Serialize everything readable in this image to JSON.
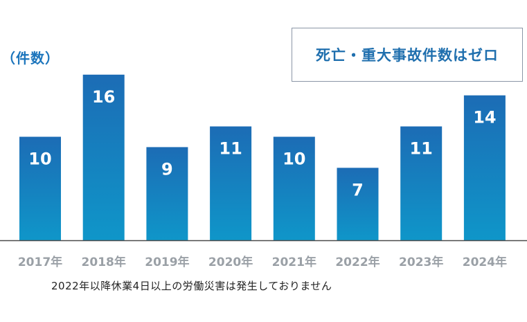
{
  "unit_label": "（件数）",
  "callout": "死亡・重大事故件数はゼロ",
  "footnote": "2022年以降休業4日以上の労働災害は発生しておりません",
  "colors": {
    "bar_top": "#1c6cb5",
    "bar_bottom": "#0f96c9",
    "value_text": "#ffffff",
    "tick_text": "#9aa0a6",
    "accent": "#1f6fae"
  },
  "chart_data": {
    "type": "bar",
    "categories": [
      "2017年",
      "2018年",
      "2019年",
      "2020年",
      "2021年",
      "2022年",
      "2023年",
      "2024年"
    ],
    "values": [
      10,
      16,
      9,
      11,
      10,
      7,
      11,
      14
    ],
    "title": "",
    "xlabel": "",
    "ylabel": "（件数）",
    "ylim": [
      0,
      18
    ],
    "grid": false,
    "legend": "none"
  }
}
